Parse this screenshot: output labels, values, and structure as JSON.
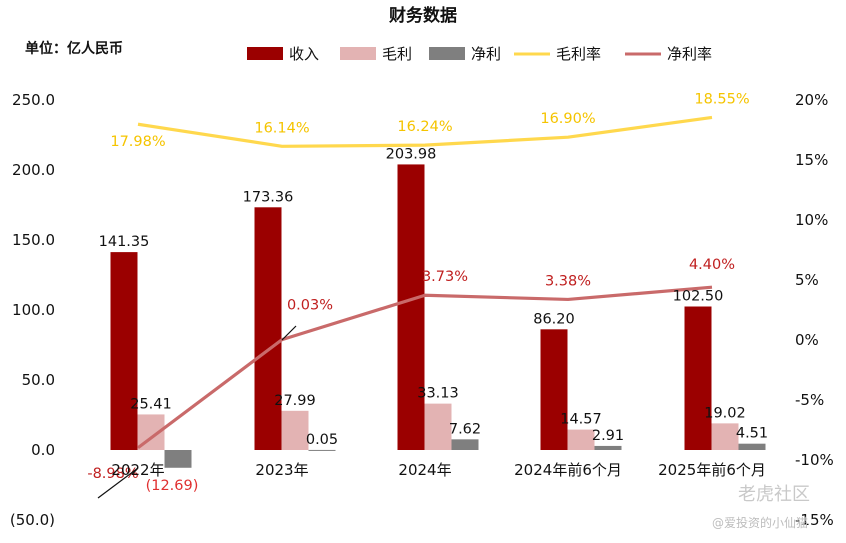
{
  "chart_data": {
    "type": "bar",
    "title": "财务数据",
    "unit_label": "单位：亿人民币",
    "categories": [
      "2022年",
      "2023年",
      "2024年",
      "2024年前6个月",
      "2025年前6个月"
    ],
    "series": [
      {
        "name": "收入",
        "kind": "bar",
        "axis": "left",
        "color": "#9b0000",
        "values": [
          141.35,
          173.36,
          203.98,
          86.2,
          102.5
        ],
        "labels": [
          "141.35",
          "173.36",
          "203.98",
          "86.20",
          "102.50"
        ]
      },
      {
        "name": "毛利",
        "kind": "bar",
        "axis": "left",
        "color": "#e3b3b3",
        "values": [
          25.41,
          27.99,
          33.13,
          14.57,
          19.02
        ],
        "labels": [
          "25.41",
          "27.99",
          "33.13",
          "14.57",
          "19.02"
        ]
      },
      {
        "name": "净利",
        "kind": "bar",
        "axis": "left",
        "color": "#7f7f7f",
        "values": [
          -12.69,
          0.05,
          7.62,
          2.91,
          4.51
        ],
        "labels": [
          "(12.69)",
          "0.05",
          "7.62",
          "2.91",
          "4.51"
        ]
      },
      {
        "name": "毛利率",
        "kind": "line",
        "axis": "right",
        "color": "#ffd84d",
        "values": [
          17.98,
          16.14,
          16.24,
          16.9,
          18.55
        ],
        "labels": [
          "17.98%",
          "16.14%",
          "16.24%",
          "16.90%",
          "18.55%"
        ]
      },
      {
        "name": "净利率",
        "kind": "line",
        "axis": "right",
        "color": "#c96a6a",
        "values": [
          -8.98,
          0.03,
          3.73,
          3.38,
          4.4
        ],
        "labels": [
          "-8.98%",
          "0.03%",
          "3.73%",
          "3.38%",
          "4.40%"
        ]
      }
    ],
    "y_left": {
      "ylim": [
        -50,
        250
      ],
      "ticks": [
        -50,
        0,
        50,
        100,
        150,
        200,
        250
      ],
      "tick_labels": [
        "(50.0)",
        "0.0",
        "50.0",
        "100.0",
        "150.0",
        "200.0",
        "250.0"
      ]
    },
    "y_right": {
      "ylim": [
        -15,
        20
      ],
      "ticks": [
        -15,
        -10,
        -5,
        0,
        5,
        10,
        15,
        20
      ],
      "tick_labels": [
        "-15%",
        "-10%",
        "-5%",
        "0%",
        "5%",
        "10%",
        "15%",
        "20%"
      ]
    },
    "legend_position": "top",
    "grid": false,
    "negative_label_color": "#e03030",
    "net_margin_label_color": "#c02020",
    "gross_margin_label_color": "#f5c400"
  },
  "watermark": {
    "logo": "老虎社区",
    "author": "@爱投资的小仙猫"
  }
}
